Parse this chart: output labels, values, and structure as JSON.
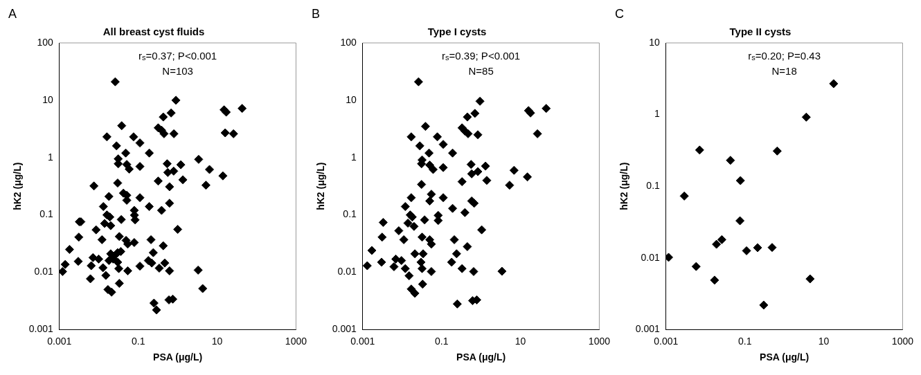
{
  "chart_data": [
    {
      "type": "scatter",
      "title": "All breast cyst fluids",
      "xlabel": "PSA (μg/L)",
      "ylabel": "hK2 (μg/L)",
      "annotations": [
        "A",
        "r$_{s}$=0.37; P<0.001",
        "N=103"
      ],
      "log": "xy",
      "xlim": [
        0.001,
        1000
      ],
      "ylim": [
        0.001,
        100
      ],
      "xticks": [
        0.001,
        0.1,
        10,
        1000
      ],
      "yticks": [
        0.001,
        0.01,
        0.1,
        1,
        10,
        100
      ],
      "grid": false,
      "legend": false,
      "marker": "diamond",
      "series": [
        {
          "color": "#000000",
          "x": [
            0.026,
            0.9,
            43,
            15,
            17,
            0.43,
            0.68,
            0.038,
            0.32,
            0.39,
            0.45,
            0.8,
            16,
            26,
            0.016,
            0.076,
            0.11,
            0.028,
            0.19,
            0.048,
            0.031,
            0.031,
            0.051,
            0.059,
            0.11,
            0.54,
            1.2,
            3.4,
            6.4,
            14,
            0.56,
            0.79,
            0.32,
            1.35,
            5.2,
            0.62,
            0.0075,
            0.03,
            0.042,
            0.051,
            0.051,
            0.018,
            0.11,
            0.19,
            0.39,
            0.62,
            0.013,
            0.016,
            0.019,
            0.079,
            0.08,
            0.083,
            0.037,
            0.0032,
            0.0035,
            0.014,
            0.02,
            1.0,
            0.0085,
            0.0031,
            0.012,
            0.033,
            0.049,
            0.054,
            0.079,
            0.21,
            0.43,
            0.0018,
            0.02,
            0.024,
            0.03,
            0.036,
            0.018,
            0.023,
            0.03,
            0.24,
            0.0071,
            0.0099,
            0.0014,
            0.003,
            0.18,
            0.22,
            0.47,
            0.0064,
            0.0127,
            0.032,
            0.11,
            0.0012,
            0.015,
            0.054,
            0.34,
            0.62,
            3.3,
            0.0061,
            0.033,
            4.3,
            0.017,
            0.021,
            0.6,
            0.75,
            0.25,
            0.29
          ],
          "values": [
            21,
            10,
            7.2,
            6.8,
            6.2,
            5.1,
            6.0,
            3.6,
            3.3,
            3.0,
            2.6,
            2.6,
            2.7,
            2.6,
            2.3,
            2.3,
            1.8,
            1.6,
            1.2,
            1.2,
            0.95,
            0.78,
            0.76,
            0.63,
            0.7,
            0.78,
            0.75,
            0.93,
            0.62,
            0.48,
            0.55,
            0.58,
            0.39,
            0.41,
            0.33,
            0.31,
            0.32,
            0.36,
            0.24,
            0.22,
            0.18,
            0.21,
            0.2,
            0.14,
            0.12,
            0.16,
            0.14,
            0.1,
            0.092,
            0.12,
            0.099,
            0.082,
            0.083,
            0.076,
            0.076,
            0.071,
            0.065,
            0.056,
            0.055,
            0.041,
            0.037,
            0.042,
            0.036,
            0.031,
            0.033,
            0.037,
            0.029,
            0.025,
            0.021,
            0.019,
            0.022,
            0.023,
            0.016,
            0.017,
            0.015,
            0.022,
            0.018,
            0.017,
            0.0137,
            0.0155,
            0.016,
            0.0145,
            0.0145,
            0.013,
            0.012,
            0.0116,
            0.0128,
            0.0103,
            0.0088,
            0.0106,
            0.0118,
            0.0106,
            0.0109,
            0.0077,
            0.0064,
            0.0052,
            0.005,
            0.0045,
            0.0033,
            0.0034,
            0.0029,
            0.0022
          ]
        }
      ]
    },
    {
      "type": "scatter",
      "title": "Type I cysts",
      "xlabel": "PSA (μg/L)",
      "ylabel": "hK2 (μg/L)",
      "annotations": [
        "B",
        "r$_{s}$=0.39; P<0.001",
        "N=85"
      ],
      "log": "xy",
      "xlim": [
        0.001,
        1000
      ],
      "ylim": [
        0.001,
        100
      ],
      "xticks": [
        0.001,
        0.1,
        10,
        1000
      ],
      "yticks": [
        0.001,
        0.01,
        0.1,
        1,
        10,
        100
      ],
      "grid": false,
      "legend": false,
      "marker": "diamond",
      "series": [
        {
          "color": "#000000",
          "x": [
            0.026,
            0.94,
            45,
            16,
            18,
            0.7,
            0.45,
            0.039,
            0.33,
            0.39,
            0.47,
            0.83,
            27,
            0.017,
            0.078,
            0.11,
            0.028,
            0.19,
            0.048,
            0.032,
            0.031,
            0.05,
            0.061,
            0.11,
            0.56,
            1.3,
            6.9,
            15,
            0.58,
            0.83,
            0.33,
            1.4,
            5.3,
            0.031,
            0.017,
            0.055,
            0.05,
            0.11,
            0.19,
            0.39,
            0.58,
            0.67,
            0.012,
            0.016,
            0.018,
            0.082,
            0.082,
            0.037,
            0.0033,
            0.014,
            0.02,
            1.04,
            0.0082,
            0.0031,
            0.011,
            0.032,
            0.05,
            0.055,
            0.21,
            0.45,
            0.0017,
            0.021,
            0.034,
            0.24,
            0.0069,
            0.0096,
            0.003,
            0.03,
            0.18,
            0.0013,
            0.0062,
            0.012,
            0.032,
            0.33,
            0.055,
            0.65,
            3.4,
            0.015,
            0.033,
            0.017,
            0.021,
            0.25,
            0.61,
            0.78
          ],
          "values": [
            21,
            9.6,
            7.2,
            6.6,
            6.0,
            5.9,
            5.1,
            3.5,
            3.3,
            2.9,
            2.6,
            2.5,
            2.6,
            2.3,
            2.3,
            1.7,
            1.6,
            1.2,
            1.2,
            0.91,
            0.78,
            0.74,
            0.62,
            0.67,
            0.76,
            0.71,
            0.6,
            0.46,
            0.52,
            0.57,
            0.38,
            0.4,
            0.33,
            0.34,
            0.2,
            0.23,
            0.175,
            0.2,
            0.13,
            0.11,
            0.175,
            0.16,
            0.14,
            0.1,
            0.092,
            0.098,
            0.08,
            0.082,
            0.074,
            0.072,
            0.063,
            0.055,
            0.053,
            0.041,
            0.037,
            0.041,
            0.037,
            0.031,
            0.037,
            0.028,
            0.024,
            0.021,
            0.021,
            0.021,
            0.017,
            0.016,
            0.015,
            0.015,
            0.015,
            0.013,
            0.0125,
            0.0116,
            0.0116,
            0.0116,
            0.0103,
            0.0103,
            0.0104,
            0.0087,
            0.0062,
            0.0051,
            0.0043,
            0.0028,
            0.0032,
            0.0033
          ]
        }
      ]
    },
    {
      "type": "scatter",
      "title": "Type II cysts",
      "xlabel": "PSA (μg/L)",
      "ylabel": "hK2 (μg/L)",
      "annotations": [
        "C",
        "r$_{s}$=0.20; P=0.43",
        "N=18"
      ],
      "log": "xy",
      "xlim": [
        0.001,
        1000
      ],
      "ylim": [
        0.001,
        10
      ],
      "xticks": [
        0.001,
        0.1,
        10,
        1000
      ],
      "yticks": [
        0.001,
        0.01,
        0.1,
        1,
        10
      ],
      "grid": false,
      "legend": false,
      "marker": "diamond",
      "series": [
        {
          "color": "#000000",
          "x": [
            17.8,
            3.6,
            0.0071,
            0.66,
            0.043,
            0.077,
            0.0029,
            0.075,
            0.026,
            0.019,
            0.11,
            0.21,
            0.49,
            0.00116,
            0.0058,
            0.017,
            4.5,
            0.3
          ],
          "values": [
            2.7,
            0.92,
            0.32,
            0.31,
            0.23,
            0.12,
            0.073,
            0.033,
            0.018,
            0.0155,
            0.0126,
            0.0139,
            0.014,
            0.0102,
            0.0076,
            0.0049,
            0.0051,
            0.0022
          ]
        }
      ]
    }
  ]
}
